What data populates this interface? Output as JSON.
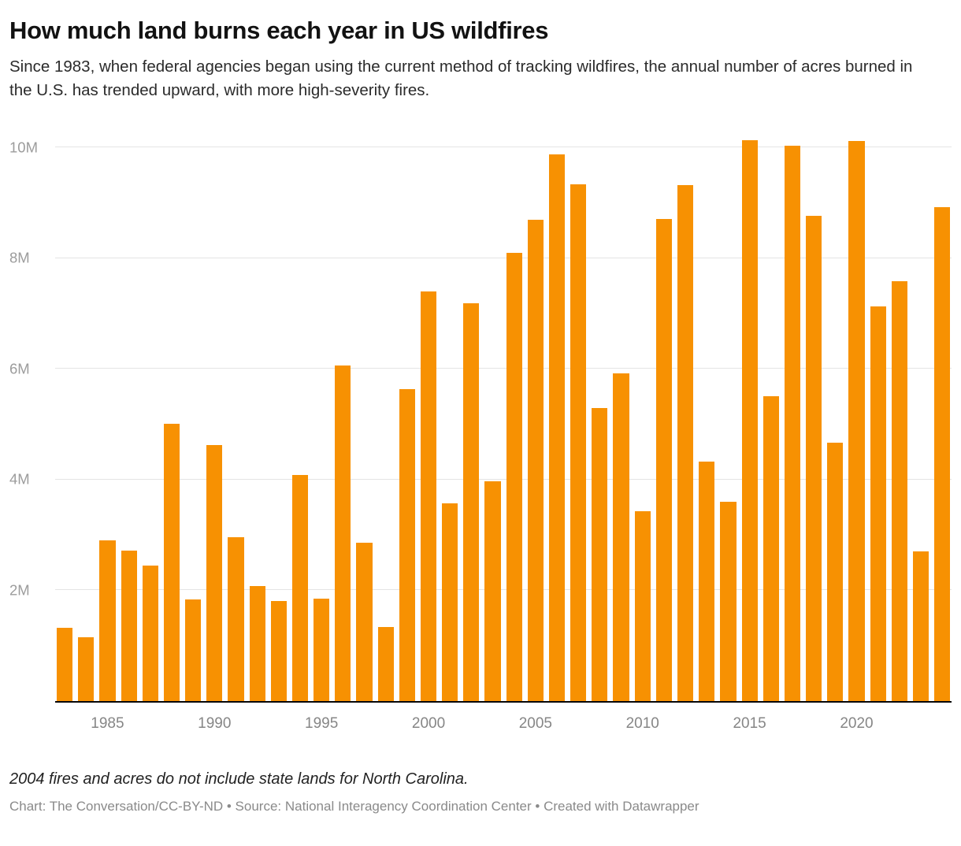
{
  "header": {
    "title": "How much land burns each year in US wildfires",
    "subtitle": "Since 1983, when federal agencies began using the current method of tracking wildfires, the annual number of acres burned in the U.S. has trended upward, with more high-severity fires."
  },
  "chart_data": {
    "type": "bar",
    "title": "How much land burns each year in US wildfires",
    "xlabel": "",
    "ylabel": "",
    "unit": "acres",
    "bar_color": "#f79102",
    "grid": "horizontal",
    "legend": "none",
    "ylim": [
      0,
      10250000
    ],
    "categories": [
      1983,
      1984,
      1985,
      1986,
      1987,
      1988,
      1989,
      1990,
      1991,
      1992,
      1993,
      1994,
      1995,
      1996,
      1997,
      1998,
      1999,
      2000,
      2001,
      2002,
      2003,
      2004,
      2005,
      2006,
      2007,
      2008,
      2009,
      2010,
      2011,
      2012,
      2013,
      2014,
      2015,
      2016,
      2017,
      2018,
      2019,
      2020,
      2021,
      2022,
      2023,
      2024
    ],
    "values": [
      1323666,
      1148409,
      2896147,
      2719162,
      2447296,
      5009290,
      1827310,
      4621621,
      2953578,
      2069929,
      1797574,
      4073579,
      1840546,
      6065998,
      2856959,
      1329704,
      5626093,
      7393493,
      3570911,
      7184712,
      3960842,
      8097880,
      8689389,
      9873745,
      9328045,
      5292468,
      5921786,
      3422724,
      8711367,
      9326238,
      4319546,
      3595613,
      10125149,
      5509995,
      10026086,
      8767492,
      4664364,
      10122336,
      7125643,
      7577183,
      2693910,
      8924884
    ],
    "y_ticks": [
      {
        "value": 2000000,
        "label": "2M"
      },
      {
        "value": 4000000,
        "label": "4M"
      },
      {
        "value": 6000000,
        "label": "6M"
      },
      {
        "value": 8000000,
        "label": "8M"
      },
      {
        "value": 10000000,
        "label": "10M"
      }
    ],
    "x_ticks": [
      1985,
      1990,
      1995,
      2000,
      2005,
      2010,
      2015,
      2020
    ]
  },
  "footer": {
    "note": "2004 fires and acres do not include state lands for North Carolina.",
    "credit": "Chart: The Conversation/CC-BY-ND • Source: National Interagency Coordination Center • Created with Datawrapper"
  }
}
